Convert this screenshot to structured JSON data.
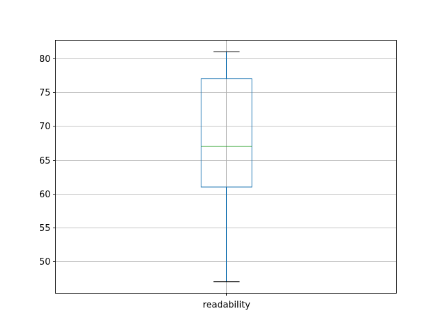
{
  "chart_data": {
    "type": "box",
    "categories": [
      "readability"
    ],
    "boxes": [
      {
        "label": "readability",
        "whisker_low": 47,
        "q1": 61,
        "median": 67,
        "q3": 77,
        "whisker_high": 81
      }
    ],
    "ylim": [
      45.3,
      82.7
    ],
    "yticks": [
      50,
      55,
      60,
      65,
      70,
      75,
      80
    ],
    "ytick_labels": [
      "50",
      "55",
      "60",
      "65",
      "70",
      "75",
      "80"
    ],
    "grid": true,
    "title": "",
    "xlabel": "",
    "ylabel": "",
    "colors": {
      "box": "#1f77b4",
      "median": "#2ca02c",
      "caps": "#000000",
      "grid": "#b0b0b0"
    }
  }
}
